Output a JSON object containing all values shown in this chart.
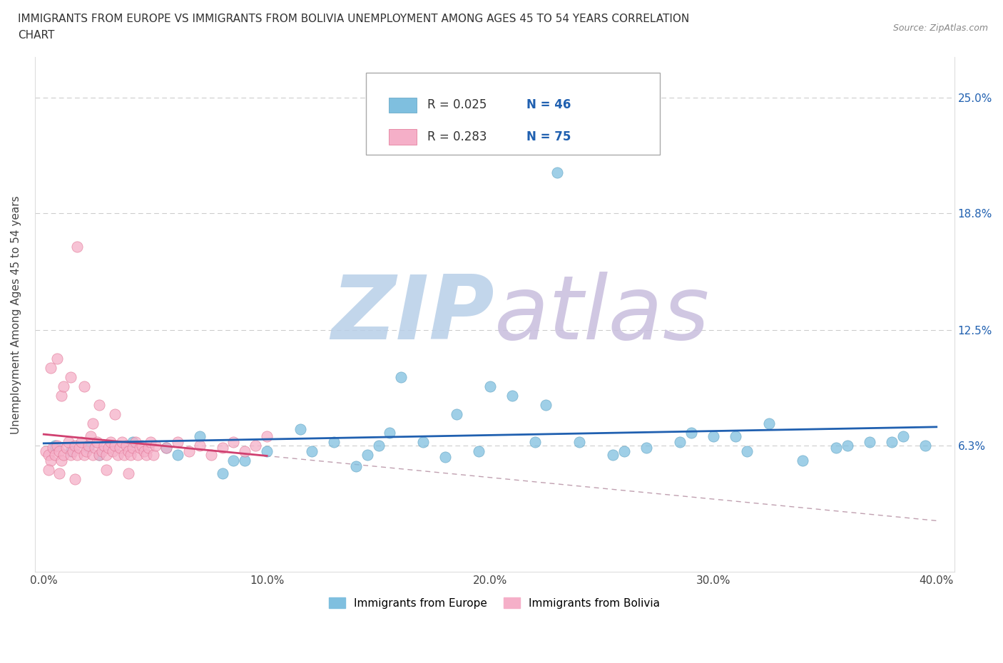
{
  "title_line1": "IMMIGRANTS FROM EUROPE VS IMMIGRANTS FROM BOLIVIA UNEMPLOYMENT AMONG AGES 45 TO 54 YEARS CORRELATION",
  "title_line2": "CHART",
  "source_text": "Source: ZipAtlas.com",
  "ylabel": "Unemployment Among Ages 45 to 54 years",
  "xlim": [
    0.0,
    0.4
  ],
  "ylim": [
    0.0,
    0.27
  ],
  "xtick_positions": [
    0.0,
    0.1,
    0.2,
    0.3,
    0.4
  ],
  "xticklabels": [
    "0.0%",
    "10.0%",
    "20.0%",
    "30.0%",
    "40.0%"
  ],
  "ytick_positions": [
    0.063,
    0.125,
    0.188,
    0.25
  ],
  "ytick_labels": [
    "6.3%",
    "12.5%",
    "18.8%",
    "25.0%"
  ],
  "europe_color": "#7fbfdf",
  "europe_edge_color": "#5a9fc0",
  "bolivia_color": "#f5afc8",
  "bolivia_edge_color": "#e07090",
  "europe_line_color": "#2060b0",
  "bolivia_line_color": "#d04070",
  "diag_line_color": "#c0a0b0",
  "watermark": "ZIPatlas",
  "watermark_color_zip": "#b0c8e0",
  "watermark_color_atlas": "#c0b8d8",
  "legend_R_color": "#333333",
  "legend_N_color": "#2060b0",
  "background_color": "#ffffff",
  "eu_x": [
    0.005,
    0.012,
    0.025,
    0.04,
    0.055,
    0.07,
    0.085,
    0.1,
    0.115,
    0.13,
    0.145,
    0.155,
    0.17,
    0.185,
    0.195,
    0.21,
    0.225,
    0.24,
    0.255,
    0.27,
    0.285,
    0.3,
    0.315,
    0.325,
    0.34,
    0.355,
    0.37,
    0.385,
    0.395,
    0.02,
    0.06,
    0.09,
    0.12,
    0.15,
    0.18,
    0.22,
    0.26,
    0.31,
    0.36,
    0.16,
    0.2,
    0.14,
    0.08,
    0.38,
    0.29,
    0.23
  ],
  "eu_y": [
    0.063,
    0.06,
    0.058,
    0.065,
    0.062,
    0.068,
    0.055,
    0.06,
    0.072,
    0.065,
    0.058,
    0.07,
    0.065,
    0.08,
    0.06,
    0.09,
    0.085,
    0.065,
    0.058,
    0.062,
    0.065,
    0.068,
    0.06,
    0.075,
    0.055,
    0.062,
    0.065,
    0.068,
    0.063,
    0.062,
    0.058,
    0.055,
    0.06,
    0.063,
    0.057,
    0.065,
    0.06,
    0.068,
    0.063,
    0.1,
    0.095,
    0.052,
    0.048,
    0.065,
    0.07,
    0.21
  ],
  "bo_x": [
    0.001,
    0.002,
    0.003,
    0.004,
    0.005,
    0.006,
    0.007,
    0.008,
    0.009,
    0.01,
    0.011,
    0.012,
    0.013,
    0.014,
    0.015,
    0.016,
    0.017,
    0.018,
    0.019,
    0.02,
    0.021,
    0.022,
    0.023,
    0.024,
    0.025,
    0.026,
    0.027,
    0.028,
    0.029,
    0.03,
    0.031,
    0.032,
    0.033,
    0.034,
    0.035,
    0.036,
    0.037,
    0.038,
    0.039,
    0.04,
    0.041,
    0.042,
    0.043,
    0.044,
    0.045,
    0.046,
    0.047,
    0.048,
    0.049,
    0.05,
    0.055,
    0.06,
    0.065,
    0.07,
    0.075,
    0.08,
    0.085,
    0.09,
    0.095,
    0.1,
    0.008,
    0.012,
    0.018,
    0.025,
    0.032,
    0.003,
    0.006,
    0.009,
    0.015,
    0.022,
    0.002,
    0.007,
    0.014,
    0.028,
    0.038
  ],
  "bo_y": [
    0.06,
    0.058,
    0.055,
    0.062,
    0.058,
    0.063,
    0.06,
    0.055,
    0.058,
    0.062,
    0.065,
    0.058,
    0.06,
    0.063,
    0.058,
    0.062,
    0.065,
    0.058,
    0.06,
    0.063,
    0.068,
    0.058,
    0.062,
    0.065,
    0.058,
    0.06,
    0.063,
    0.058,
    0.062,
    0.065,
    0.06,
    0.063,
    0.058,
    0.062,
    0.065,
    0.058,
    0.063,
    0.06,
    0.058,
    0.062,
    0.065,
    0.058,
    0.062,
    0.063,
    0.06,
    0.058,
    0.062,
    0.065,
    0.058,
    0.063,
    0.062,
    0.065,
    0.06,
    0.063,
    0.058,
    0.062,
    0.065,
    0.06,
    0.063,
    0.068,
    0.09,
    0.1,
    0.095,
    0.085,
    0.08,
    0.105,
    0.11,
    0.095,
    0.17,
    0.075,
    0.05,
    0.048,
    0.045,
    0.05,
    0.048
  ]
}
